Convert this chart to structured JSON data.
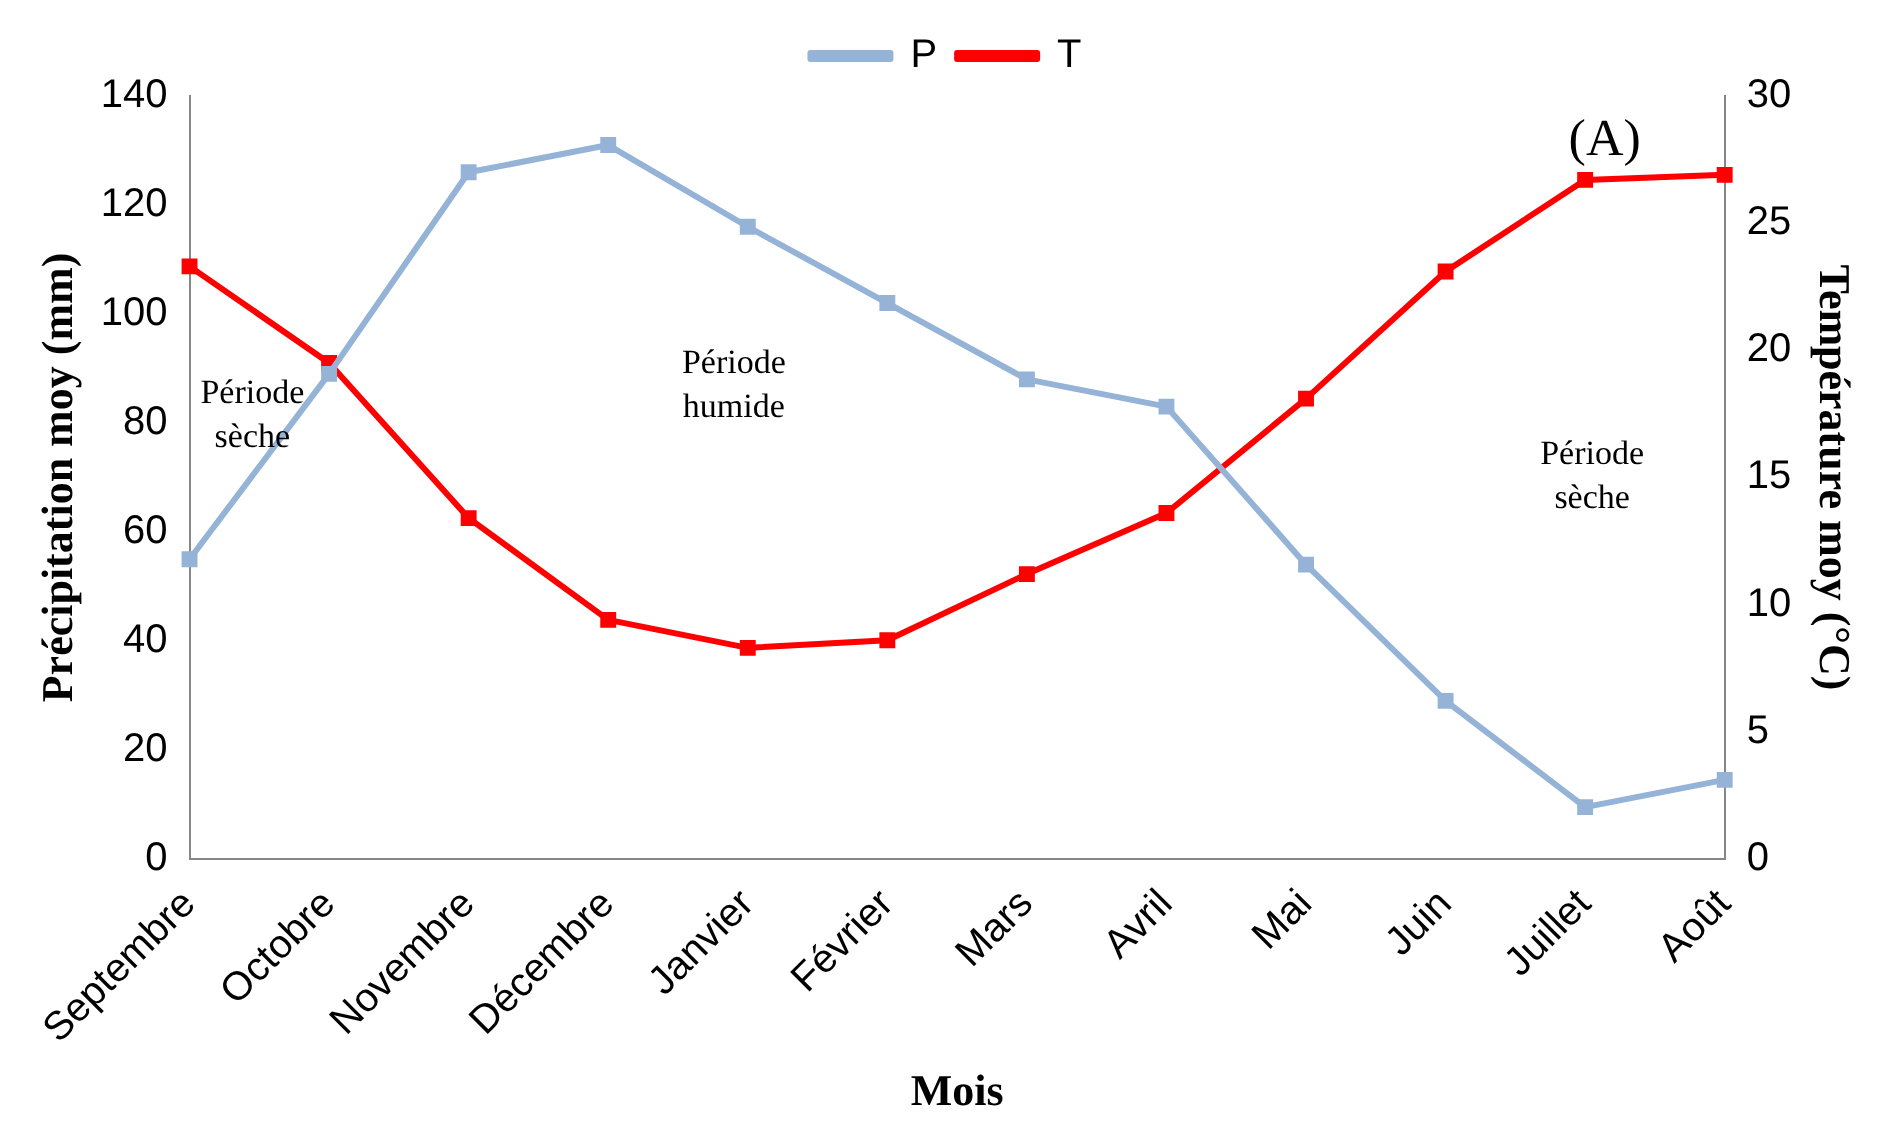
{
  "chart_data": {
    "type": "line",
    "xlabel": "Mois",
    "ylabel": "Précipitation moy (mm)",
    "y2label": "Température moy (°C)",
    "categories": [
      "Septembre",
      "Octobre",
      "Novembre",
      "Décembre",
      "Janvier",
      "Février",
      "Mars",
      "Avril",
      "Mai",
      "Juin",
      "Juillet",
      "Août"
    ],
    "series": [
      {
        "name": "P",
        "color": "#95b3d7",
        "values": [
          55,
          89,
          126,
          131,
          116,
          102,
          88,
          83,
          54,
          29,
          9.5,
          14.5
        ]
      },
      {
        "name": "T",
        "color": "#ff0000",
        "axis": "y2",
        "values": [
          23.3,
          19.5,
          13.4,
          9.4,
          8.3,
          8.6,
          11.2,
          13.6,
          18.1,
          23.1,
          26.7,
          26.9
        ]
      }
    ],
    "ylim": [
      0,
      140
    ],
    "yticks": [
      0,
      20,
      40,
      60,
      80,
      100,
      120,
      140
    ],
    "y2lim": [
      0,
      30
    ],
    "y2ticks": [
      0,
      5,
      10,
      15,
      20,
      25,
      30
    ],
    "annotations": [
      "(A)",
      "Période sèche",
      "Période humide",
      "Période sèche"
    ],
    "legend": "top",
    "marker": "square",
    "line_style": "solid",
    "grid": false
  }
}
